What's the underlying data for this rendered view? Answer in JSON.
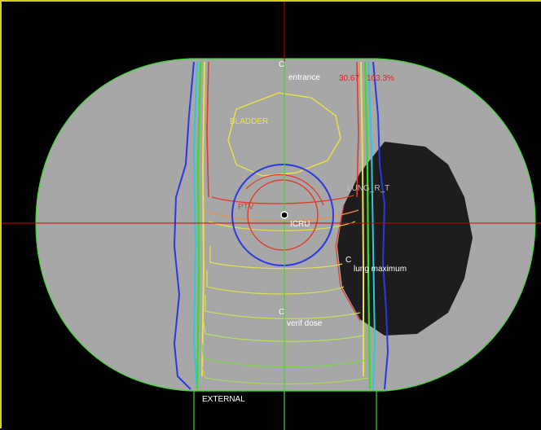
{
  "viewport": {
    "background": "#000000",
    "frame_color": "#d8d020",
    "body_color": "#a7a7a7",
    "lung_color": "#1e1c1c",
    "crosshair_color": "#d00000"
  },
  "points": {
    "entrance": {
      "marker": "C",
      "label": "entrance"
    },
    "icru": {
      "marker": "C",
      "label": "ICRU"
    },
    "lung_max": {
      "marker": "C",
      "label": "lung maximum"
    },
    "verif": {
      "marker": "C",
      "label": "verif dose"
    }
  },
  "structures": {
    "bladder": "BLADDER",
    "external": "EXTERNAL",
    "ptv": "PTV",
    "lung_right": "LUNG_R_T"
  },
  "dose_readout": {
    "value": "30.67",
    "percent": "103.3%",
    "color": "#e02020"
  },
  "isodose_colors": {
    "red": "#e03a2a",
    "orange": "#e8904a",
    "yellow": "#e8e04a",
    "light_green": "#b8e05a",
    "green": "#3ad830",
    "cyan": "#30c8d8",
    "blue": "#2a3ae0"
  }
}
